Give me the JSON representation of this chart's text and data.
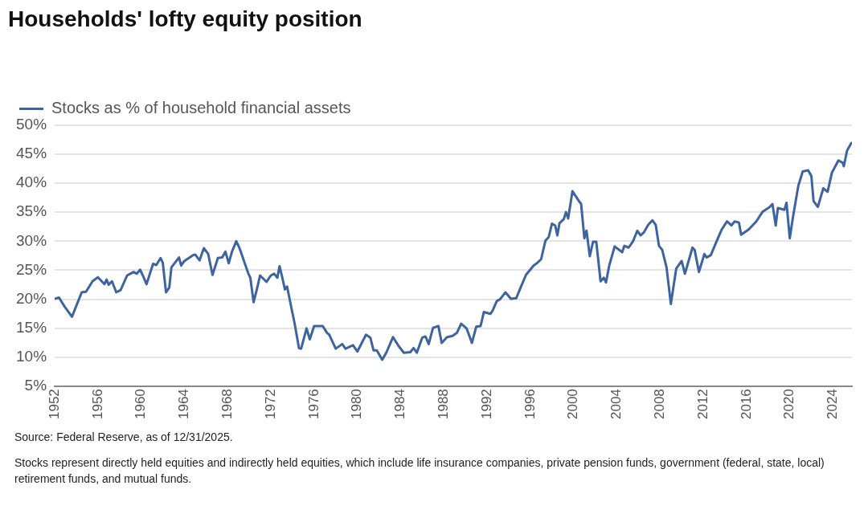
{
  "chart_data": {
    "type": "line",
    "title": "Households' lofty equity position",
    "annotations": [
      "Source: Federal Reserve, as of 12/31/2025.",
      "Stocks represent directly held equities and indirectly held equities, which include life insurance companies, private pension funds, government (federal, state, local) retirement funds, and mutual funds."
    ],
    "x": [
      1952.0,
      1952.4,
      1952.9,
      1953.6,
      1954.5,
      1954.9,
      1955.5,
      1956.0,
      1956.6,
      1956.8,
      1957.0,
      1957.3,
      1957.7,
      1958.1,
      1958.7,
      1959.3,
      1959.6,
      1959.9,
      1960.2,
      1960.5,
      1961.1,
      1961.4,
      1961.8,
      1962.0,
      1962.3,
      1962.6,
      1962.8,
      1963.5,
      1963.7,
      1964.0,
      1964.8,
      1965.0,
      1965.4,
      1965.8,
      1966.2,
      1966.6,
      1967.1,
      1967.5,
      1967.8,
      1968.1,
      1968.4,
      1968.8,
      1969.1,
      1969.9,
      1970.1,
      1970.4,
      1970.7,
      1971.0,
      1971.6,
      1972.0,
      1972.3,
      1972.6,
      1972.8,
      1973.0,
      1973.3,
      1973.5,
      1973.9,
      1974.2,
      1974.6,
      1974.8,
      1975.3,
      1975.6,
      1976.0,
      1976.8,
      1977.2,
      1977.4,
      1978.0,
      1978.6,
      1978.9,
      1979.6,
      1980.0,
      1980.8,
      1981.2,
      1981.5,
      1981.8,
      1982.3,
      1982.7,
      1983.3,
      1983.8,
      1984.3,
      1984.9,
      1985.2,
      1985.5,
      1986.0,
      1986.3,
      1986.6,
      1987.0,
      1987.5,
      1987.8,
      1988.3,
      1988.8,
      1989.2,
      1989.6,
      1990.1,
      1990.6,
      1991.0,
      1991.4,
      1991.7,
      1992.3,
      1992.5,
      1992.9,
      1993.2,
      1993.7,
      1994.2,
      1994.7,
      1995.1,
      1995.6,
      1996.3,
      1996.6,
      1997.0,
      1997.4,
      1997.7,
      1998.0,
      1998.3,
      1998.5,
      1998.7,
      1999.1,
      1999.3,
      1999.5,
      1999.9,
      2000.5,
      2000.7,
      2001.0,
      2001.2,
      2001.5,
      2001.8,
      2002.1,
      2002.5,
      2002.8,
      2003.0,
      2003.3,
      2003.8,
      2004.5,
      2004.7,
      2005.1,
      2005.5,
      2005.9,
      2006.2,
      2006.5,
      2006.9,
      2007.3,
      2007.6,
      2007.9,
      2008.2,
      2008.6,
      2009.0,
      2009.5,
      2010.0,
      2010.3,
      2011.0,
      2011.2,
      2011.6,
      2012.1,
      2012.3,
      2012.7,
      2013.1,
      2013.7,
      2014.2,
      2014.6,
      2014.9,
      2015.3,
      2015.5,
      2016.2,
      2016.9,
      2017.5,
      2018.1,
      2018.4,
      2018.7,
      2018.9,
      2019.5,
      2019.7,
      2020.0,
      2020.3,
      2020.8,
      2021.2,
      2021.7,
      2022.0,
      2022.2,
      2022.6,
      2023.1,
      2023.5,
      2023.9,
      2024.5,
      2024.9,
      2025.0,
      2025.3,
      2025.7
    ],
    "series": [
      {
        "name": "Stocks as % of household financial assets",
        "color": "#3e64a0",
        "values": [
          20.1,
          20.3,
          18.8,
          17.0,
          21.2,
          21.3,
          23.1,
          23.8,
          22.6,
          23.4,
          22.5,
          23.1,
          21.2,
          21.6,
          24.1,
          24.7,
          24.4,
          25.1,
          23.9,
          22.6,
          26.1,
          25.9,
          27.1,
          26.3,
          21.2,
          22.0,
          25.5,
          27.2,
          25.8,
          26.6,
          27.6,
          27.7,
          26.7,
          28.8,
          27.8,
          24.2,
          27.1,
          27.2,
          28.2,
          26.2,
          28.2,
          30.0,
          28.8,
          24.5,
          23.7,
          19.5,
          21.7,
          24.1,
          23.0,
          24.1,
          24.4,
          23.7,
          25.7,
          24.2,
          21.7,
          22.2,
          18.5,
          15.8,
          11.6,
          11.5,
          15.0,
          13.1,
          15.4,
          15.4,
          14.2,
          13.9,
          11.5,
          12.3,
          11.5,
          12.1,
          11.0,
          13.9,
          13.4,
          11.2,
          11.2,
          9.6,
          10.9,
          13.5,
          12.0,
          10.8,
          10.9,
          11.6,
          10.8,
          13.4,
          13.6,
          12.3,
          15.1,
          15.4,
          12.5,
          13.5,
          13.7,
          14.2,
          15.8,
          15.0,
          12.5,
          15.3,
          15.4,
          17.8,
          17.5,
          18.0,
          19.7,
          20.0,
          21.2,
          20.1,
          20.2,
          22.0,
          24.2,
          25.8,
          26.2,
          26.9,
          30.1,
          30.7,
          33.0,
          32.7,
          31.0,
          33.1,
          33.8,
          35.0,
          33.9,
          38.6,
          36.9,
          36.4,
          30.5,
          31.8,
          27.4,
          29.9,
          29.9,
          23.1,
          23.7,
          22.9,
          25.8,
          29.1,
          28.1,
          29.2,
          28.9,
          30.0,
          31.8,
          31.0,
          31.5,
          32.8,
          33.6,
          32.8,
          29.2,
          28.5,
          25.5,
          19.2,
          25.3,
          26.6,
          24.4,
          28.9,
          28.5,
          24.7,
          27.8,
          27.2,
          27.6,
          29.4,
          32.0,
          33.4,
          32.7,
          33.4,
          33.2,
          31.1,
          32.0,
          33.4,
          35.1,
          35.8,
          36.4,
          32.7,
          35.7,
          35.4,
          36.6,
          30.5,
          34.2,
          39.6,
          42.0,
          42.2,
          41.2,
          36.9,
          35.9,
          39.1,
          38.5,
          41.8,
          43.9,
          43.5,
          42.9,
          45.6,
          46.9
        ]
      }
    ],
    "xlim": [
      1952,
      2025.75
    ],
    "xticks": [
      1952,
      1956,
      1960,
      1964,
      1968,
      1972,
      1976,
      1980,
      1984,
      1988,
      1992,
      1996,
      2000,
      2004,
      2008,
      2012,
      2016,
      2020,
      2024
    ],
    "ylim": [
      5,
      50
    ],
    "yticks": [
      {
        "value": 5,
        "label": "5%"
      },
      {
        "value": 10,
        "label": "10%"
      },
      {
        "value": 15,
        "label": "15%"
      },
      {
        "value": 20,
        "label": "20%"
      },
      {
        "value": 25,
        "label": "25%"
      },
      {
        "value": 30,
        "label": "30%"
      },
      {
        "value": 35,
        "label": "35%"
      },
      {
        "value": 40,
        "label": "40%"
      },
      {
        "value": 45,
        "label": "45%"
      },
      {
        "value": 50,
        "label": "50%"
      }
    ],
    "grid": "y",
    "legend": "top left",
    "marker": "none",
    "line_style": "solid"
  }
}
